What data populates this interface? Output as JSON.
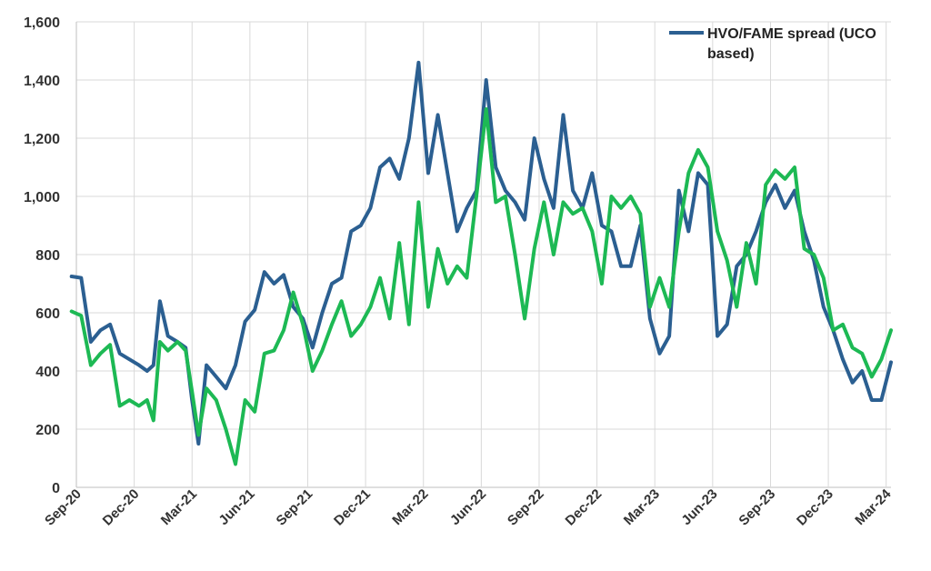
{
  "chart_data": {
    "type": "line",
    "title": "",
    "xlabel": "",
    "ylabel": "",
    "ylim": [
      0,
      1600
    ],
    "yticks": [
      "0",
      "200",
      "400",
      "600",
      "800",
      "1,000",
      "1,200",
      "1,400",
      "1,600"
    ],
    "xticks": [
      "Sep-20",
      "Dec-20",
      "Mar-21",
      "Jun-21",
      "Sep-21",
      "Dec-21",
      "Mar-22",
      "Jun-22",
      "Sep-22",
      "Dec-22",
      "Mar-23",
      "Jun-23",
      "Sep-23",
      "Dec-23",
      "Mar-24"
    ],
    "grid": true,
    "legend_position": "top-right",
    "series": [
      {
        "name": "HVO/FAME spread (UCO based)",
        "color": "#2b5f91",
        "values": [
          [
            "Sep-20",
            725
          ],
          [
            "Sep-20",
            720
          ],
          [
            "Oct-20",
            500
          ],
          [
            "Oct-20",
            540
          ],
          [
            "Nov-20",
            560
          ],
          [
            "Nov-20",
            460
          ],
          [
            "Dec-20",
            440
          ],
          [
            "Dec-20",
            420
          ],
          [
            "Jan-21",
            400
          ],
          [
            "Jan-21",
            420
          ],
          [
            "Jan-21",
            640
          ],
          [
            "Feb-21",
            520
          ],
          [
            "Feb-21",
            500
          ],
          [
            "Mar-21",
            480
          ],
          [
            "Mar-21",
            300
          ],
          [
            "Mar-21",
            150
          ],
          [
            "Apr-21",
            420
          ],
          [
            "Apr-21",
            380
          ],
          [
            "May-21",
            340
          ],
          [
            "May-21",
            420
          ],
          [
            "Jun-21",
            570
          ],
          [
            "Jun-21",
            610
          ],
          [
            "Jul-21",
            740
          ],
          [
            "Jul-21",
            700
          ],
          [
            "Aug-21",
            730
          ],
          [
            "Aug-21",
            620
          ],
          [
            "Sep-21",
            580
          ],
          [
            "Sep-21",
            480
          ],
          [
            "Oct-21",
            600
          ],
          [
            "Oct-21",
            700
          ],
          [
            "Nov-21",
            720
          ],
          [
            "Nov-21",
            880
          ],
          [
            "Dec-21",
            900
          ],
          [
            "Dec-21",
            960
          ],
          [
            "Jan-22",
            1100
          ],
          [
            "Jan-22",
            1130
          ],
          [
            "Feb-22",
            1060
          ],
          [
            "Feb-22",
            1200
          ],
          [
            "Mar-22",
            1460
          ],
          [
            "Mar-22",
            1080
          ],
          [
            "Apr-22",
            1280
          ],
          [
            "Apr-22",
            1080
          ],
          [
            "May-22",
            880
          ],
          [
            "May-22",
            960
          ],
          [
            "Jun-22",
            1020
          ],
          [
            "Jun-22",
            1400
          ],
          [
            "Jul-22",
            1100
          ],
          [
            "Jul-22",
            1020
          ],
          [
            "Aug-22",
            980
          ],
          [
            "Aug-22",
            920
          ],
          [
            "Sep-22",
            1200
          ],
          [
            "Sep-22",
            1060
          ],
          [
            "Oct-22",
            960
          ],
          [
            "Oct-22",
            1280
          ],
          [
            "Nov-22",
            1020
          ],
          [
            "Nov-22",
            960
          ],
          [
            "Dec-22",
            1080
          ],
          [
            "Dec-22",
            900
          ],
          [
            "Jan-23",
            880
          ],
          [
            "Jan-23",
            760
          ],
          [
            "Feb-23",
            760
          ],
          [
            "Feb-23",
            900
          ],
          [
            "Mar-23",
            580
          ],
          [
            "Mar-23",
            460
          ],
          [
            "Apr-23",
            520
          ],
          [
            "Apr-23",
            1020
          ],
          [
            "May-23",
            880
          ],
          [
            "May-23",
            1080
          ],
          [
            "Jun-23",
            1040
          ],
          [
            "Jun-23",
            520
          ],
          [
            "Jul-23",
            560
          ],
          [
            "Jul-23",
            760
          ],
          [
            "Aug-23",
            800
          ],
          [
            "Aug-23",
            880
          ],
          [
            "Sep-23",
            980
          ],
          [
            "Sep-23",
            1040
          ],
          [
            "Oct-23",
            960
          ],
          [
            "Oct-23",
            1020
          ],
          [
            "Nov-23",
            880
          ],
          [
            "Nov-23",
            780
          ],
          [
            "Dec-23",
            620
          ],
          [
            "Dec-23",
            540
          ],
          [
            "Jan-24",
            440
          ],
          [
            "Jan-24",
            360
          ],
          [
            "Feb-24",
            400
          ],
          [
            "Feb-24",
            300
          ],
          [
            "Mar-24",
            300
          ],
          [
            "Mar-24",
            430
          ]
        ]
      },
      {
        "name": "",
        "color": "#1db954",
        "values": [
          [
            "Sep-20",
            605
          ],
          [
            "Sep-20",
            590
          ],
          [
            "Oct-20",
            420
          ],
          [
            "Oct-20",
            460
          ],
          [
            "Nov-20",
            490
          ],
          [
            "Nov-20",
            280
          ],
          [
            "Dec-20",
            300
          ],
          [
            "Dec-20",
            280
          ],
          [
            "Jan-21",
            300
          ],
          [
            "Jan-21",
            230
          ],
          [
            "Jan-21",
            500
          ],
          [
            "Feb-21",
            470
          ],
          [
            "Feb-21",
            500
          ],
          [
            "Mar-21",
            470
          ],
          [
            "Mar-21",
            330
          ],
          [
            "Mar-21",
            180
          ],
          [
            "Apr-21",
            340
          ],
          [
            "Apr-21",
            300
          ],
          [
            "May-21",
            200
          ],
          [
            "May-21",
            80
          ],
          [
            "Jun-21",
            300
          ],
          [
            "Jun-21",
            260
          ],
          [
            "Jul-21",
            460
          ],
          [
            "Jul-21",
            470
          ],
          [
            "Aug-21",
            540
          ],
          [
            "Aug-21",
            670
          ],
          [
            "Sep-21",
            560
          ],
          [
            "Sep-21",
            400
          ],
          [
            "Oct-21",
            470
          ],
          [
            "Oct-21",
            560
          ],
          [
            "Nov-21",
            640
          ],
          [
            "Nov-21",
            520
          ],
          [
            "Dec-21",
            560
          ],
          [
            "Dec-21",
            620
          ],
          [
            "Jan-22",
            720
          ],
          [
            "Jan-22",
            580
          ],
          [
            "Feb-22",
            840
          ],
          [
            "Feb-22",
            560
          ],
          [
            "Mar-22",
            980
          ],
          [
            "Mar-22",
            620
          ],
          [
            "Apr-22",
            820
          ],
          [
            "Apr-22",
            700
          ],
          [
            "May-22",
            760
          ],
          [
            "May-22",
            720
          ],
          [
            "Jun-22",
            1000
          ],
          [
            "Jun-22",
            1300
          ],
          [
            "Jul-22",
            980
          ],
          [
            "Jul-22",
            1000
          ],
          [
            "Aug-22",
            800
          ],
          [
            "Aug-22",
            580
          ],
          [
            "Sep-22",
            820
          ],
          [
            "Sep-22",
            980
          ],
          [
            "Oct-22",
            800
          ],
          [
            "Oct-22",
            980
          ],
          [
            "Nov-22",
            940
          ],
          [
            "Nov-22",
            960
          ],
          [
            "Dec-22",
            880
          ],
          [
            "Dec-22",
            700
          ],
          [
            "Jan-23",
            1000
          ],
          [
            "Jan-23",
            960
          ],
          [
            "Feb-23",
            1000
          ],
          [
            "Feb-23",
            940
          ],
          [
            "Mar-23",
            620
          ],
          [
            "Mar-23",
            720
          ],
          [
            "Apr-23",
            620
          ],
          [
            "Apr-23",
            880
          ],
          [
            "May-23",
            1080
          ],
          [
            "May-23",
            1160
          ],
          [
            "Jun-23",
            1100
          ],
          [
            "Jun-23",
            880
          ],
          [
            "Jul-23",
            780
          ],
          [
            "Jul-23",
            620
          ],
          [
            "Aug-23",
            840
          ],
          [
            "Aug-23",
            700
          ],
          [
            "Sep-23",
            1040
          ],
          [
            "Sep-23",
            1090
          ],
          [
            "Oct-23",
            1060
          ],
          [
            "Oct-23",
            1100
          ],
          [
            "Nov-23",
            820
          ],
          [
            "Nov-23",
            800
          ],
          [
            "Dec-23",
            720
          ],
          [
            "Dec-23",
            540
          ],
          [
            "Jan-24",
            560
          ],
          [
            "Jan-24",
            480
          ],
          [
            "Feb-24",
            460
          ],
          [
            "Feb-24",
            380
          ],
          [
            "Mar-24",
            440
          ],
          [
            "Mar-24",
            540
          ]
        ]
      }
    ]
  }
}
